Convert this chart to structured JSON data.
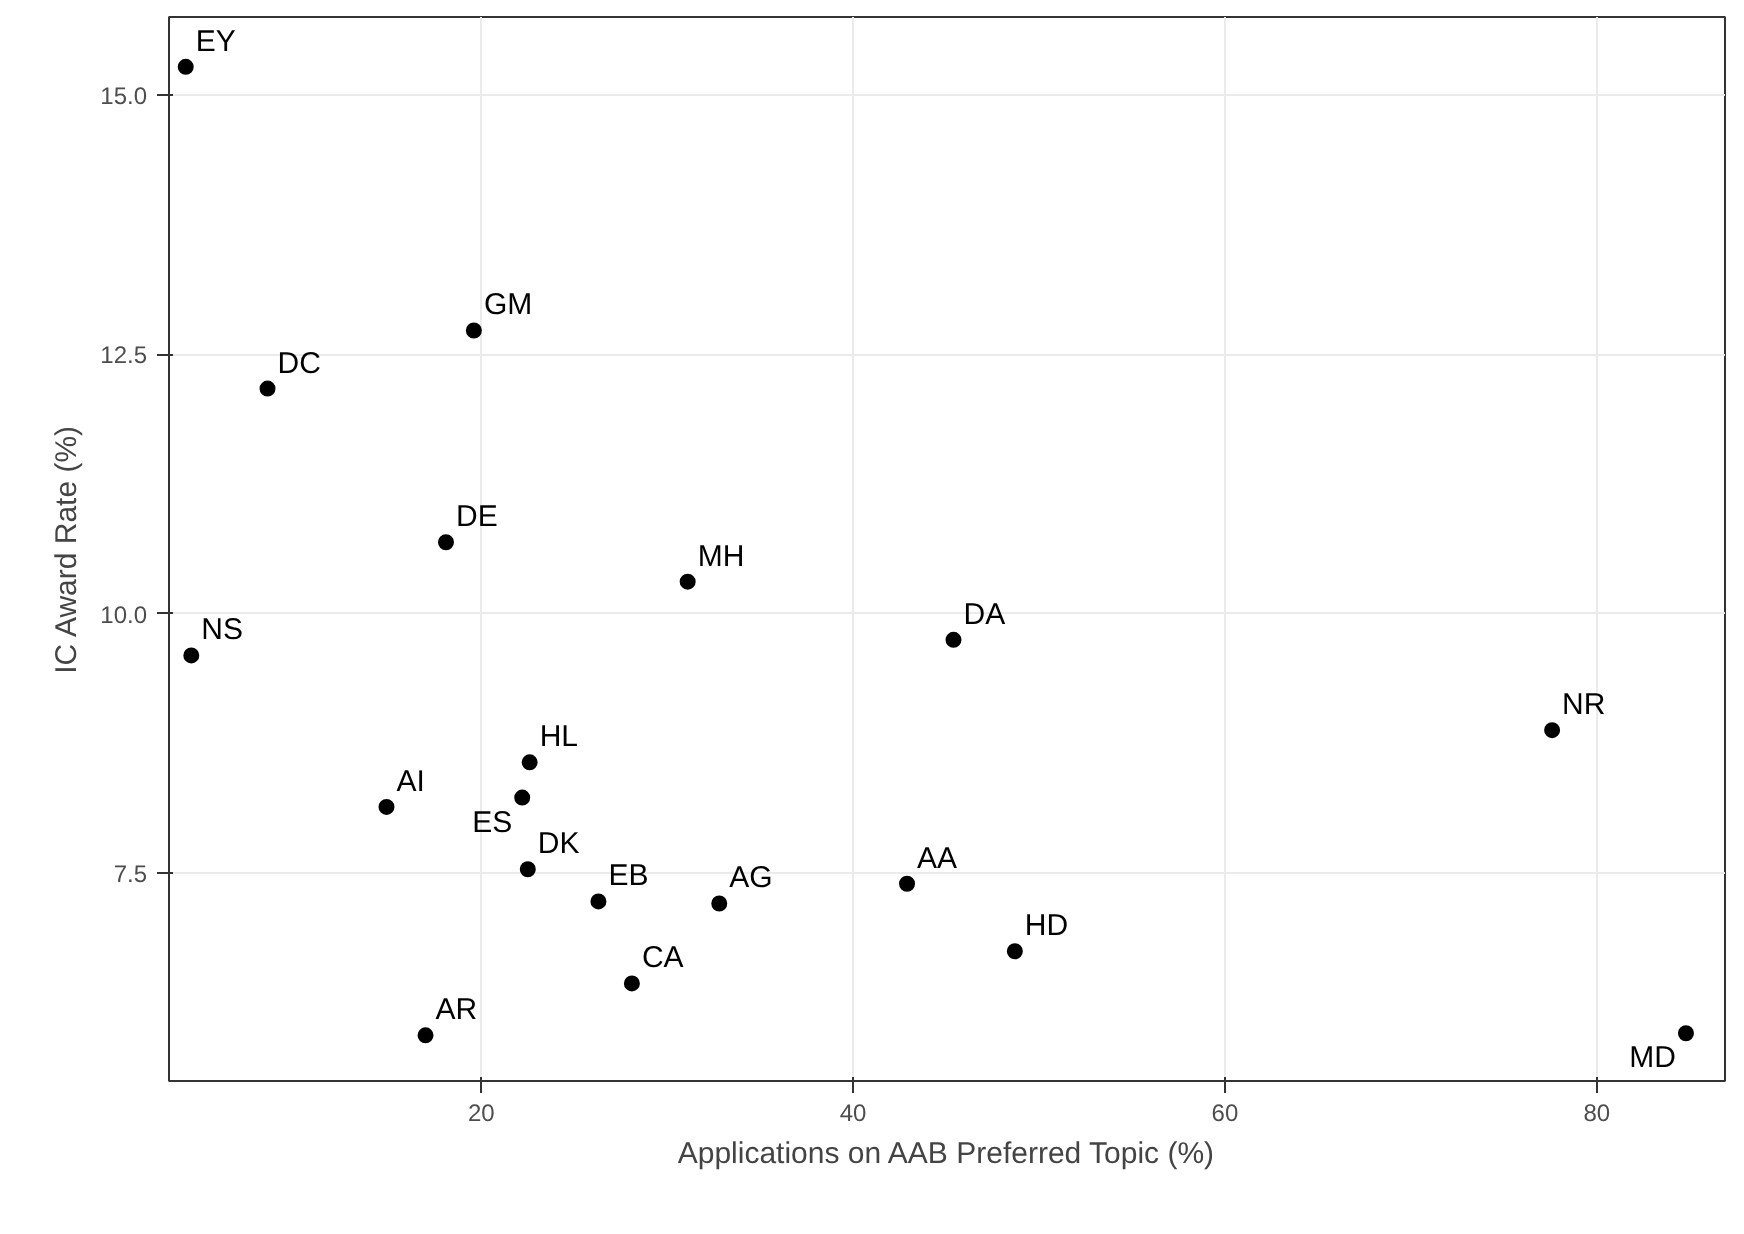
{
  "chart_data": {
    "type": "scatter",
    "xlabel": "Applications on AAB Preferred Topic (%)",
    "ylabel": "IC Award Rate (%)",
    "x": [
      4.1,
      8.5,
      19.6,
      18.1,
      31.1,
      4.4,
      45.4,
      77.6,
      22.6,
      22.2,
      14.9,
      22.5,
      26.3,
      32.8,
      42.9,
      28.1,
      48.7,
      17.0,
      84.8
    ],
    "series": [
      {
        "color": "#000000",
        "values": [
          15.27,
          12.17,
          12.73,
          10.69,
          10.31,
          9.6,
          9.75,
          8.88,
          8.57,
          8.23,
          8.14,
          7.54,
          7.23,
          7.21,
          7.4,
          6.44,
          6.75,
          5.94,
          5.96
        ]
      }
    ],
    "annotations": [
      {
        "text": "EY",
        "x": 4.1,
        "y": 15.27
      },
      {
        "text": "DC",
        "x": 8.5,
        "y": 12.17
      },
      {
        "text": "GM",
        "x": 19.6,
        "y": 12.73
      },
      {
        "text": "DE",
        "x": 18.1,
        "y": 10.69
      },
      {
        "text": "MH",
        "x": 31.1,
        "y": 10.31
      },
      {
        "text": "NS",
        "x": 4.4,
        "y": 9.6
      },
      {
        "text": "DA",
        "x": 45.4,
        "y": 9.75
      },
      {
        "text": "NR",
        "x": 77.6,
        "y": 8.88
      },
      {
        "text": "HL",
        "x": 22.6,
        "y": 8.57
      },
      {
        "text": "ES",
        "x": 22.2,
        "y": 8.23
      },
      {
        "text": "AI",
        "x": 14.9,
        "y": 8.14
      },
      {
        "text": "DK",
        "x": 22.5,
        "y": 7.54
      },
      {
        "text": "EB",
        "x": 26.3,
        "y": 7.23
      },
      {
        "text": "AG",
        "x": 32.8,
        "y": 7.21
      },
      {
        "text": "AA",
        "x": 42.9,
        "y": 7.4
      },
      {
        "text": "CA",
        "x": 28.1,
        "y": 6.44
      },
      {
        "text": "HD",
        "x": 48.7,
        "y": 6.75
      },
      {
        "text": "AR",
        "x": 17.0,
        "y": 5.94
      },
      {
        "text": "MD",
        "x": 84.8,
        "y": 5.96
      }
    ],
    "xlim": [
      3.2,
      86.9
    ],
    "ylim": [
      5.5,
      15.75
    ],
    "xticks": [
      20,
      40,
      60,
      80
    ],
    "yticks": [
      {
        "value": 7.5,
        "label": "7.5"
      },
      {
        "value": 10,
        "label": "10.0"
      },
      {
        "value": 12.5,
        "label": "12.5"
      },
      {
        "value": 15,
        "label": "15.0"
      }
    ],
    "grid": true,
    "marker": "circle"
  }
}
